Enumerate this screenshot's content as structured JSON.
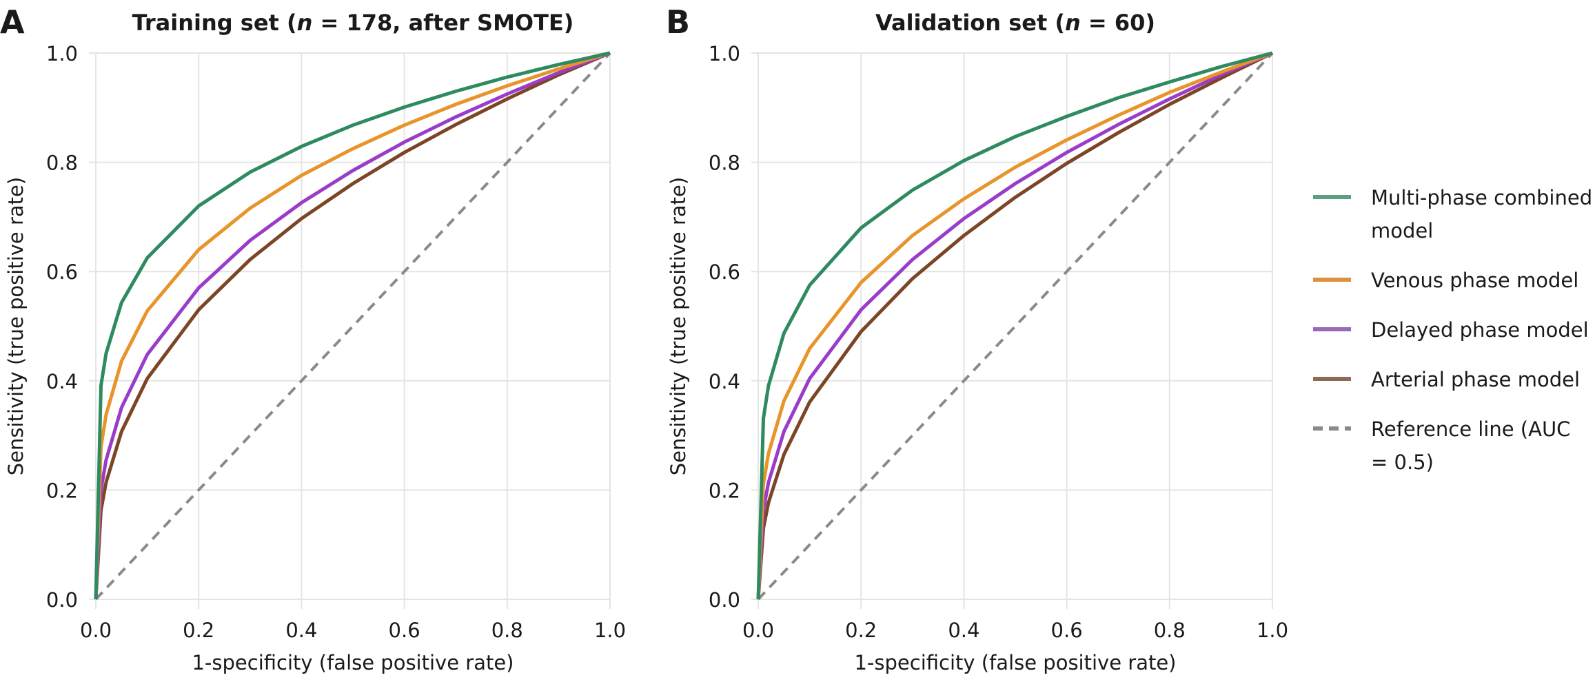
{
  "chart_data": [
    {
      "type": "line",
      "panel_label": "A",
      "title_prefix": "Training set (",
      "title_n": "n",
      "title_suffix": " = 178, after SMOTE)",
      "xlabel": "1-specificity (false positive rate)",
      "ylabel": "Sensitivity (true positive rate)",
      "xlim": [
        0,
        1
      ],
      "ylim": [
        0,
        1
      ],
      "xticks": [
        "0.0",
        "0.2",
        "0.4",
        "0.6",
        "0.8",
        "1.0"
      ],
      "yticks": [
        "0.0",
        "0.2",
        "0.4",
        "0.6",
        "0.8",
        "1.0"
      ],
      "grid": true,
      "x": [
        0,
        0.01,
        0.02,
        0.05,
        0.1,
        0.2,
        0.3,
        0.4,
        0.5,
        0.6,
        0.7,
        0.8,
        0.9,
        1.0
      ],
      "series": [
        {
          "name": "Multi-phase combined model",
          "color": "#2e8a5f",
          "values": [
            0,
            0.391,
            0.45,
            0.543,
            0.625,
            0.72,
            0.782,
            0.829,
            0.868,
            0.901,
            0.93,
            0.956,
            0.979,
            1
          ]
        },
        {
          "name": "Venous phase model",
          "color": "#e8942a",
          "values": [
            0,
            0.279,
            0.338,
            0.436,
            0.528,
            0.64,
            0.716,
            0.776,
            0.825,
            0.868,
            0.906,
            0.94,
            0.971,
            1
          ]
        },
        {
          "name": "Delayed phase model",
          "color": "#9a3cc9",
          "values": [
            0,
            0.2,
            0.255,
            0.351,
            0.448,
            0.57,
            0.657,
            0.726,
            0.785,
            0.837,
            0.883,
            0.925,
            0.964,
            1
          ]
        },
        {
          "name": "Arterial phase model",
          "color": "#7b4526",
          "values": [
            0,
            0.163,
            0.214,
            0.307,
            0.404,
            0.53,
            0.622,
            0.697,
            0.761,
            0.818,
            0.869,
            0.916,
            0.96,
            1
          ]
        }
      ],
      "reference": {
        "name": "Reference line (AUC = 0.5)",
        "color": "#8a8a8a",
        "x": [
          0,
          1
        ],
        "values": [
          0,
          1
        ]
      }
    },
    {
      "type": "line",
      "panel_label": "B",
      "title_prefix": "Validation set (",
      "title_n": "n",
      "title_suffix": " = 60)",
      "xlabel": "1-specificity (false positive rate)",
      "ylabel": "Sensitivity (true positive rate)",
      "xlim": [
        0,
        1
      ],
      "ylim": [
        0,
        1
      ],
      "xticks": [
        "0.0",
        "0.2",
        "0.4",
        "0.6",
        "0.8",
        "1.0"
      ],
      "yticks": [
        "0.0",
        "0.2",
        "0.4",
        "0.6",
        "0.8",
        "1.0"
      ],
      "grid": true,
      "x": [
        0,
        0.01,
        0.02,
        0.05,
        0.1,
        0.2,
        0.3,
        0.4,
        0.5,
        0.6,
        0.7,
        0.8,
        0.9,
        1.0
      ],
      "series": [
        {
          "name": "Multi-phase combined model",
          "color": "#2e8a5f",
          "values": [
            0,
            0.331,
            0.391,
            0.487,
            0.575,
            0.68,
            0.749,
            0.803,
            0.847,
            0.884,
            0.918,
            0.947,
            0.975,
            1
          ]
        },
        {
          "name": "Venous phase model",
          "color": "#e8942a",
          "values": [
            0,
            0.211,
            0.267,
            0.363,
            0.459,
            0.58,
            0.666,
            0.733,
            0.791,
            0.841,
            0.886,
            0.928,
            0.965,
            1
          ]
        },
        {
          "name": "Delayed phase model",
          "color": "#9a3cc9",
          "values": [
            0,
            0.163,
            0.214,
            0.307,
            0.404,
            0.53,
            0.622,
            0.697,
            0.761,
            0.818,
            0.869,
            0.916,
            0.96,
            1
          ]
        },
        {
          "name": "Arterial phase model",
          "color": "#7b4526",
          "values": [
            0,
            0.13,
            0.177,
            0.265,
            0.361,
            0.49,
            0.587,
            0.666,
            0.736,
            0.798,
            0.854,
            0.906,
            0.954,
            1
          ]
        }
      ],
      "reference": {
        "name": "Reference line (AUC = 0.5)",
        "color": "#8a8a8a",
        "x": [
          0,
          1
        ],
        "values": [
          0,
          1
        ]
      }
    }
  ],
  "legend": {
    "placement": "right",
    "items": [
      {
        "lines": [
          "Multi-phase combined",
          "model"
        ],
        "color": "#5c9f80",
        "dashed": false
      },
      {
        "lines": [
          "Venous phase model"
        ],
        "color": "#de9040",
        "dashed": false
      },
      {
        "lines": [
          "Delayed phase model"
        ],
        "color": "#9a6ab8",
        "dashed": false
      },
      {
        "lines": [
          "Arterial phase model"
        ],
        "color": "#8c6a55",
        "dashed": false
      },
      {
        "lines": [
          "Reference line (AUC",
          "= 0.5)"
        ],
        "color": "#8a8a8a",
        "dashed": true
      }
    ]
  }
}
